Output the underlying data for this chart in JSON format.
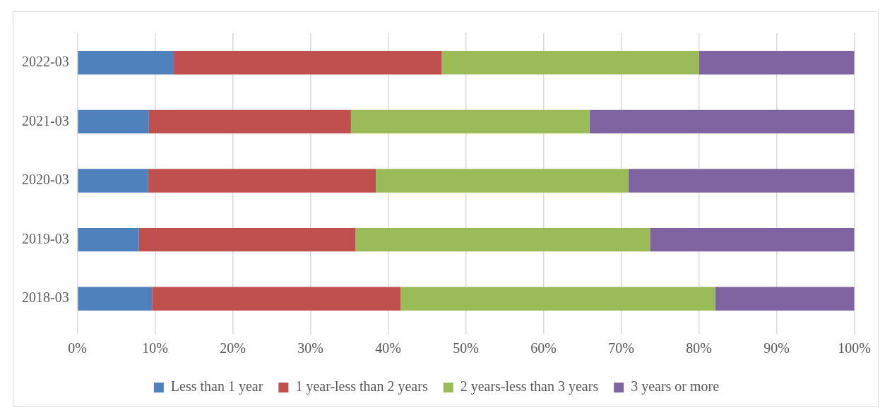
{
  "chart_data": {
    "type": "bar",
    "orientation": "horizontal",
    "stacked": true,
    "categories": [
      "2022-03",
      "2021-03",
      "2020-03",
      "2019-03",
      "2018-03"
    ],
    "series": [
      {
        "name": "Less than 1 year",
        "color": "#4f81bd",
        "values": [
          12.4,
          9.2,
          9.1,
          7.9,
          9.6
        ]
      },
      {
        "name": "1 year-less than 2 years",
        "color": "#c0504d",
        "values": [
          34.5,
          26.0,
          29.3,
          27.9,
          32.0
        ]
      },
      {
        "name": "2 years-less than 3 years",
        "color": "#9bbb59",
        "values": [
          33.1,
          30.7,
          32.5,
          37.9,
          40.5
        ]
      },
      {
        "name": "3 years or more",
        "color": "#8064a2",
        "values": [
          20.0,
          34.1,
          29.1,
          26.3,
          17.9
        ]
      }
    ],
    "xlim": [
      0,
      100
    ],
    "xticks": [
      {
        "value": 0,
        "label": "0%"
      },
      {
        "value": 10,
        "label": "10%"
      },
      {
        "value": 20,
        "label": "20%"
      },
      {
        "value": 30,
        "label": "30%"
      },
      {
        "value": 40,
        "label": "40%"
      },
      {
        "value": 50,
        "label": "50%"
      },
      {
        "value": 60,
        "label": "60%"
      },
      {
        "value": 70,
        "label": "70%"
      },
      {
        "value": 80,
        "label": "80%"
      },
      {
        "value": 90,
        "label": "90%"
      },
      {
        "value": 100,
        "label": "100%"
      }
    ],
    "grid": "x",
    "legend": "bottom"
  }
}
